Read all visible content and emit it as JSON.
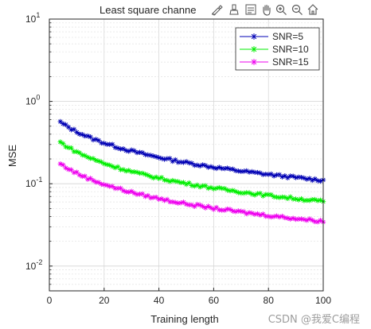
{
  "chart_data": {
    "type": "line",
    "title": "Least square channe",
    "xlabel": "Training length",
    "ylabel": "MSE",
    "xlim": [
      0,
      100
    ],
    "ylim": [
      0.005,
      10
    ],
    "yscale": "log",
    "grid": true,
    "legend_position": "top-right",
    "x_ticks": [
      "0",
      "20",
      "40",
      "60",
      "80",
      "100"
    ],
    "y_tick_exponents": [
      "-2",
      "-1",
      "0",
      "1"
    ],
    "y_tick_base": "10",
    "x": [
      4,
      100
    ],
    "series": [
      {
        "name": "SNR=5",
        "color": "#0000b4",
        "start": 0.56,
        "end": 0.11
      },
      {
        "name": "SNR=10",
        "color": "#00ee00",
        "start": 0.32,
        "end": 0.061
      },
      {
        "name": "SNR=15",
        "color": "#ee00ee",
        "start": 0.175,
        "end": 0.035
      }
    ]
  },
  "toolbar": {
    "icons": [
      "annotate-icon",
      "brush-icon",
      "datatip-icon",
      "pan-icon",
      "zoom-in-icon",
      "zoom-out-icon",
      "home-icon"
    ]
  },
  "watermark": "CSDN @我爱C编程"
}
